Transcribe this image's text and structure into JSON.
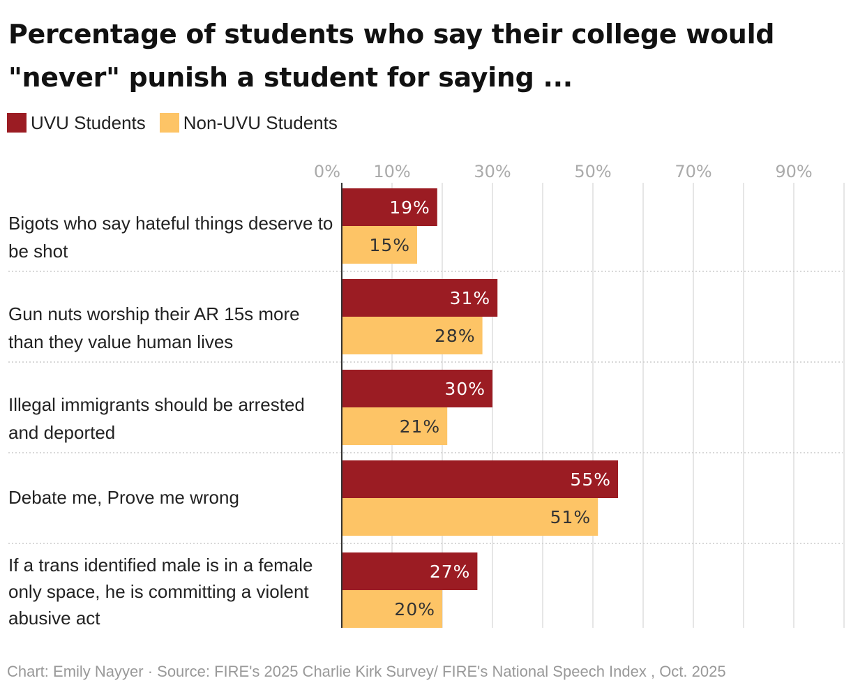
{
  "title": "Percentage of students who say their college would \"never\" punish a student for saying ...",
  "legend": {
    "uvu": "UVU Students",
    "non_uvu": "Non-UVU Students"
  },
  "colors": {
    "uvu": "#9b1c23",
    "non_uvu": "#fdc466",
    "gridline": "#dddddd",
    "axis": "#333333",
    "tick_text": "#aaaaaa"
  },
  "footer": "Chart: Emily Nayyer  · Source: FIRE's 2025 Charlie Kirk Survey/ FIRE's National Speech Index , Oct. 2025",
  "chart_data": {
    "type": "bar",
    "orientation": "horizontal",
    "categories": [
      "Bigots who say hateful things deserve to be shot",
      "Gun nuts worship their AR 15s more than they value human lives",
      "Illegal immigrants should be arrested and deported",
      "Debate me, Prove me wrong",
      "If a trans identified male is in a female only space, he is committing a violent abusive act"
    ],
    "series": [
      {
        "name": "UVU Students",
        "values": [
          19,
          31,
          30,
          55,
          27
        ],
        "labels": [
          "19%",
          "31%",
          "30%",
          "55%",
          "27%"
        ]
      },
      {
        "name": "Non-UVU Students",
        "values": [
          15,
          28,
          21,
          51,
          20
        ],
        "labels": [
          "15%",
          "28%",
          "21%",
          "51%",
          "20%"
        ]
      }
    ],
    "xlim": [
      0,
      100
    ],
    "x_tick_labels": [
      "0%",
      "10%",
      "30%",
      "50%",
      "70%",
      "90%"
    ],
    "x_ticks": [
      0,
      10,
      30,
      50,
      70,
      90
    ],
    "legend_position": "top-left",
    "grid": true
  }
}
